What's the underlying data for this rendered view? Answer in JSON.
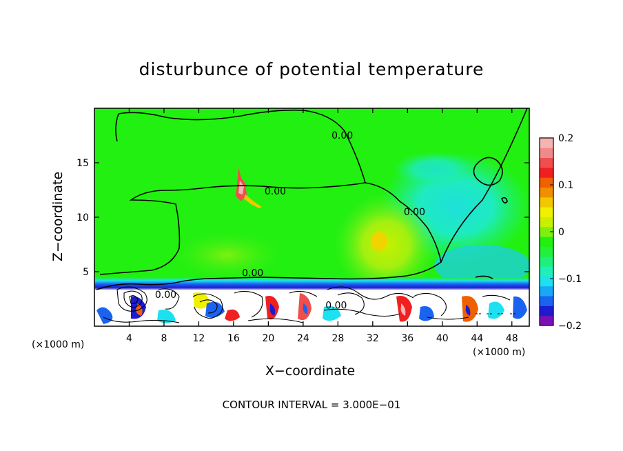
{
  "chart_data": {
    "type": "heatmap",
    "title": "disturbunce of potential temperature",
    "xlabel": "X−coordinate",
    "ylabel": "Z−coordinate",
    "x_unit_left": "(×1000 m)",
    "x_unit_right": "(×1000 m)",
    "xlim": [
      0,
      50
    ],
    "ylim": [
      0,
      20
    ],
    "x_ticks": [
      4,
      8,
      12,
      16,
      20,
      24,
      28,
      32,
      36,
      40,
      44,
      48
    ],
    "x_tick_labels": [
      "4",
      "8",
      "12",
      "16",
      "20",
      "24",
      "28",
      "32",
      "36",
      "40",
      "44",
      "48"
    ],
    "y_ticks": [
      5,
      10,
      15
    ],
    "y_tick_labels": [
      "5",
      "10",
      "15"
    ],
    "colorbar": {
      "range": [
        -0.2,
        0.2
      ],
      "ticks": [
        0.2,
        0.1,
        0,
        -0.1,
        -0.2
      ],
      "tick_labels": [
        "0.2",
        "0.1",
        "0",
        "−0.1",
        "−0.2"
      ],
      "colors": [
        "#7a0fb5",
        "#1d1bd0",
        "#1a63f0",
        "#17a9f5",
        "#1de0f0",
        "#1ef0b8",
        "#1ef07a",
        "#22f03a",
        "#22f010",
        "#7ef010",
        "#c8f000",
        "#f0f000",
        "#f0c800",
        "#f09000",
        "#f06000",
        "#f02020",
        "#f04d4d",
        "#f08a8a",
        "#f5b3b3"
      ]
    },
    "contour_labels": [
      {
        "text": "0.00",
        "x": 20.8,
        "y": 12.1
      },
      {
        "text": "0.00",
        "x": 28.5,
        "y": 17.2
      },
      {
        "text": "0.00",
        "x": 36.8,
        "y": 10.2
      },
      {
        "text": "0.00",
        "x": 18.2,
        "y": 4.6
      },
      {
        "text": "0.00",
        "x": 8.2,
        "y": 2.6
      },
      {
        "text": "0.00",
        "x": 27.8,
        "y": 1.6
      }
    ],
    "footer": "CONTOUR INTERVAL = 3.000E−01"
  }
}
